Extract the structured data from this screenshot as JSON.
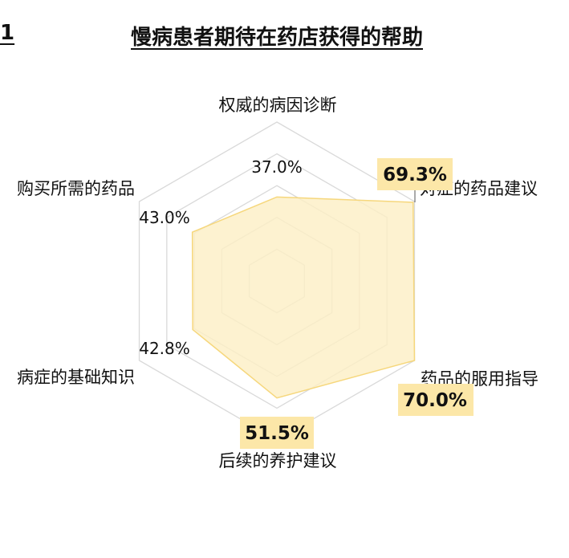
{
  "figure_number": "1",
  "chart_data": {
    "type": "radar",
    "title": "慢病患者期待在药店获得的帮助",
    "axes": [
      "权威的病因诊断",
      "对症的药品建议",
      "药品的服用指导",
      "后续的养护建议",
      "病症的基础知识",
      "购买所需的药品"
    ],
    "values": [
      37.0,
      69.3,
      70.0,
      51.5,
      42.8,
      43.0
    ],
    "value_labels": [
      "37.0%",
      "69.3%",
      "70.0%",
      "51.5%",
      "42.8%",
      "43.0%"
    ],
    "highlighted": [
      false,
      true,
      true,
      true,
      false,
      false
    ],
    "range": [
      0,
      70
    ],
    "grid_levels": 5,
    "colors": {
      "fill": "#FDEFC4",
      "stroke": "#F6D77C",
      "highlight": "#FCE7A8",
      "grid": "#D9D9D9"
    }
  }
}
